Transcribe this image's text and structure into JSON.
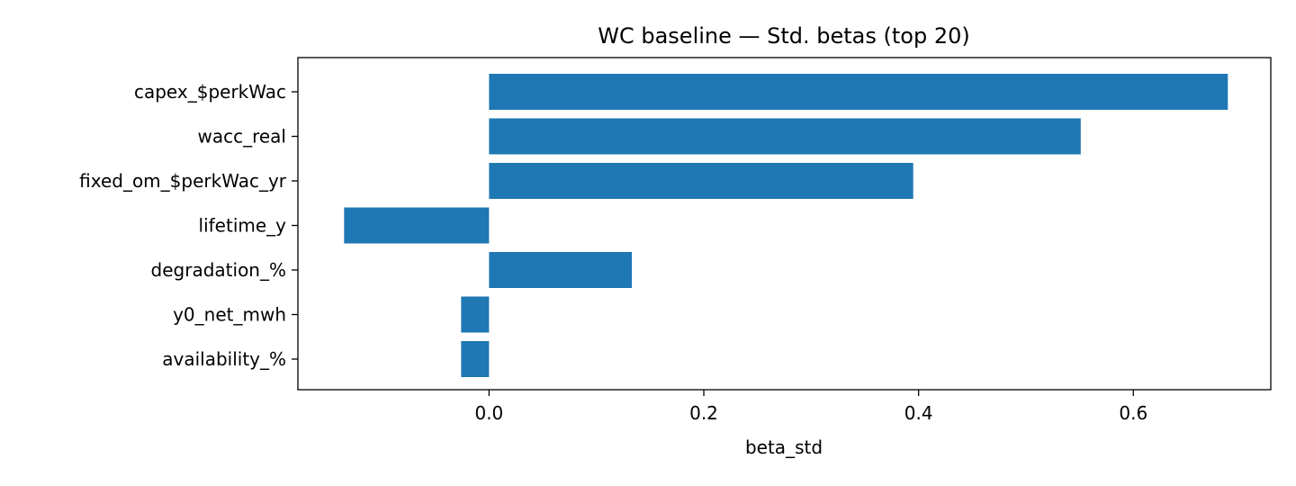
{
  "chart_data": {
    "type": "bar",
    "orientation": "horizontal",
    "title": "WC baseline — Std. betas (top 20)",
    "xlabel": "beta_std",
    "ylabel": "",
    "categories": [
      "capex_$perkWac",
      "wacc_real",
      "fixed_om_$perkWac_yr",
      "lifetime_y",
      "degradation_%",
      "y0_net_mwh",
      "availability_%"
    ],
    "values": [
      0.688,
      0.551,
      0.395,
      -0.135,
      0.133,
      -0.026,
      -0.026
    ],
    "xlim": [
      -0.178,
      0.728
    ],
    "xticks": [
      0.0,
      0.2,
      0.4,
      0.6
    ],
    "xtick_labels": [
      "0.0",
      "0.2",
      "0.4",
      "0.6"
    ],
    "bar_color": "#1f77b4",
    "grid": false,
    "legend": false
  }
}
